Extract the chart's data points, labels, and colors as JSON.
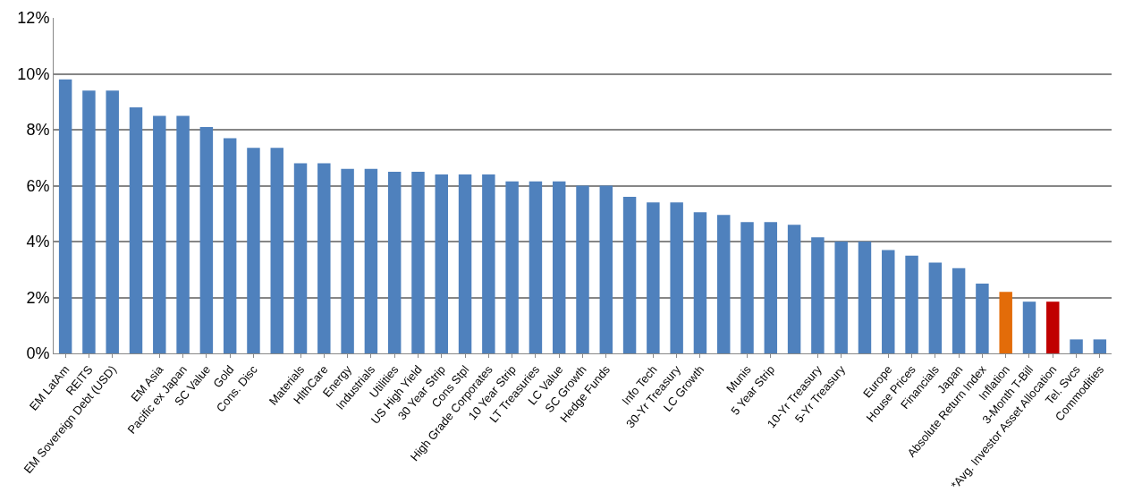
{
  "chart_data": {
    "type": "bar",
    "categories": [
      "EM LatAm",
      "REITS",
      "EM Sovereign Debt (USD)",
      null,
      "EM Asia",
      "Pacific ex Japan",
      "SC Value",
      "Gold",
      "Cons. Disc",
      null,
      "Materials",
      "HlthCare",
      "Energy",
      "Industrials",
      "Utilities",
      "US High Yield",
      "30 Year Strip",
      "Cons Stpl",
      "High Grade Corporates",
      "10 Year Strip",
      "LT Treasuries",
      "LC Value",
      "SC Growth",
      "Hedge Funds",
      null,
      "Info Tech",
      "30-Yr Treasury",
      "LC Growth",
      null,
      "Munis",
      "5 Year Strip",
      null,
      "10-Yr Treasury",
      "5-Yr Treasury",
      null,
      "Europe",
      "House Prices",
      "Financials",
      "Japan",
      "Absolute Return Index",
      "Inflation",
      "3-Month T-Bill",
      "*Avg. Investor Asset Allocation",
      "Tel. Svcs",
      "Commodities"
    ],
    "values": [
      9.8,
      9.4,
      9.4,
      8.8,
      8.5,
      8.5,
      8.1,
      7.7,
      7.35,
      7.35,
      6.8,
      6.8,
      6.6,
      6.6,
      6.5,
      6.5,
      6.4,
      6.4,
      6.4,
      6.15,
      6.15,
      6.15,
      6.0,
      6.0,
      5.6,
      5.4,
      5.4,
      5.05,
      4.95,
      4.7,
      4.7,
      4.6,
      4.15,
      4.0,
      4.0,
      3.7,
      3.5,
      3.25,
      3.05,
      2.5,
      2.2,
      1.85,
      1.85,
      0.5,
      0.5
    ],
    "colors": [
      "#4f81bd",
      "#4f81bd",
      "#4f81bd",
      "#4f81bd",
      "#4f81bd",
      "#4f81bd",
      "#4f81bd",
      "#4f81bd",
      "#4f81bd",
      "#4f81bd",
      "#4f81bd",
      "#4f81bd",
      "#4f81bd",
      "#4f81bd",
      "#4f81bd",
      "#4f81bd",
      "#4f81bd",
      "#4f81bd",
      "#4f81bd",
      "#4f81bd",
      "#4f81bd",
      "#4f81bd",
      "#4f81bd",
      "#4f81bd",
      "#4f81bd",
      "#4f81bd",
      "#4f81bd",
      "#4f81bd",
      "#4f81bd",
      "#4f81bd",
      "#4f81bd",
      "#4f81bd",
      "#4f81bd",
      "#4f81bd",
      "#4f81bd",
      "#4f81bd",
      "#4f81bd",
      "#4f81bd",
      "#4f81bd",
      "#4f81bd",
      "#e36c09",
      "#4f81bd",
      "#c00000",
      "#4f81bd",
      "#4f81bd"
    ],
    "ylim": [
      0,
      12
    ],
    "yticks": [
      {
        "value": 0,
        "label": "0%"
      },
      {
        "value": 2,
        "label": "2%"
      },
      {
        "value": 4,
        "label": "4%"
      },
      {
        "value": 6,
        "label": "6%"
      },
      {
        "value": 8,
        "label": "8%"
      },
      {
        "value": 10,
        "label": "10%"
      },
      {
        "value": 12,
        "label": "12%"
      }
    ],
    "grid": "y"
  }
}
